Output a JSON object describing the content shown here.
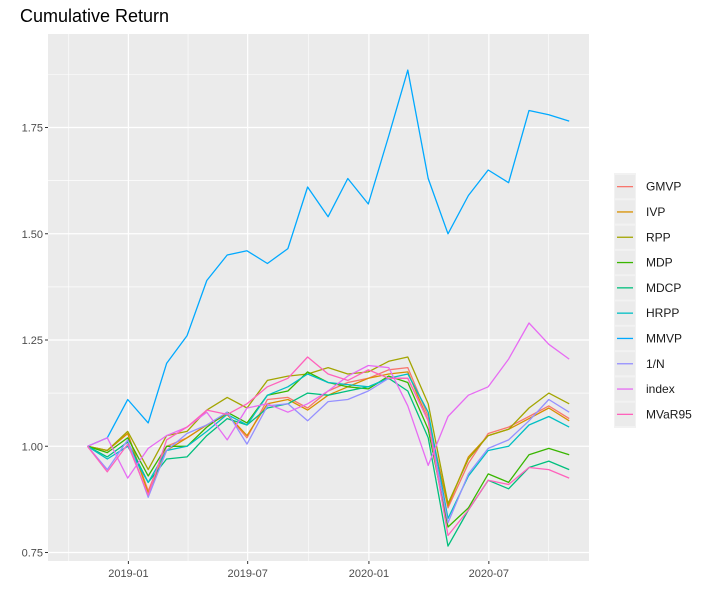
{
  "chart_data": {
    "type": "line",
    "title": "Cumulative Return",
    "xlabel": "",
    "ylabel": "",
    "grid": true,
    "legend_position": "right",
    "x": [
      "2018-10-31",
      "2018-11-30",
      "2018-12-31",
      "2019-01-31",
      "2019-02-28",
      "2019-03-31",
      "2019-04-30",
      "2019-05-31",
      "2019-06-30",
      "2019-07-31",
      "2019-08-31",
      "2019-09-30",
      "2019-10-31",
      "2019-11-30",
      "2019-12-31",
      "2020-01-31",
      "2020-02-29",
      "2020-03-31",
      "2020-04-30",
      "2020-05-31",
      "2020-06-30",
      "2020-07-31",
      "2020-08-31",
      "2020-09-30",
      "2020-10-31"
    ],
    "xlim": [
      "2018-09-01",
      "2020-11-30"
    ],
    "ylim": [
      0.73,
      1.97
    ],
    "x_ticks": [
      {
        "date": "2019-01-01",
        "label": "2019-01"
      },
      {
        "date": "2019-07-01",
        "label": "2019-07"
      },
      {
        "date": "2020-01-01",
        "label": "2020-01"
      },
      {
        "date": "2020-07-01",
        "label": "2020-07"
      }
    ],
    "y_ticks": [
      {
        "value": 0.75,
        "label": "0.75"
      },
      {
        "value": 1.0,
        "label": "1.00"
      },
      {
        "value": 1.25,
        "label": "1.25"
      },
      {
        "value": 1.5,
        "label": "1.50"
      },
      {
        "value": 1.75,
        "label": "1.75"
      }
    ],
    "series": [
      {
        "name": "GMVP",
        "color": "#F8766D",
        "values": [
          1.0,
          0.99,
          1.03,
          0.895,
          1.0,
          1.02,
          1.05,
          1.075,
          1.02,
          1.11,
          1.115,
          1.09,
          1.13,
          1.15,
          1.16,
          1.18,
          1.185,
          1.07,
          0.855,
          0.96,
          1.03,
          1.045,
          1.07,
          1.095,
          1.065
        ]
      },
      {
        "name": "IVP",
        "color": "#D89000",
        "values": [
          1.0,
          0.99,
          1.03,
          0.89,
          0.99,
          1.02,
          1.05,
          1.075,
          1.025,
          1.1,
          1.11,
          1.085,
          1.12,
          1.14,
          1.16,
          1.17,
          1.175,
          1.06,
          0.86,
          0.975,
          1.025,
          1.04,
          1.065,
          1.09,
          1.06
        ]
      },
      {
        "name": "RPP",
        "color": "#A3A500",
        "values": [
          1.0,
          0.99,
          1.035,
          0.945,
          1.025,
          1.035,
          1.085,
          1.115,
          1.09,
          1.155,
          1.165,
          1.17,
          1.185,
          1.17,
          1.175,
          1.2,
          1.21,
          1.1,
          0.865,
          0.97,
          1.025,
          1.04,
          1.09,
          1.125,
          1.1
        ]
      },
      {
        "name": "MDP",
        "color": "#39B600",
        "values": [
          1.0,
          0.985,
          1.02,
          0.93,
          1.0,
          1.0,
          1.045,
          1.08,
          1.055,
          1.12,
          1.13,
          1.175,
          1.15,
          1.14,
          1.135,
          1.165,
          1.15,
          1.04,
          0.81,
          0.855,
          0.935,
          0.915,
          0.98,
          0.995,
          0.98
        ]
      },
      {
        "name": "MDCP",
        "color": "#00BF7D",
        "values": [
          1.0,
          0.975,
          1.01,
          0.915,
          0.97,
          0.975,
          1.025,
          1.065,
          1.05,
          1.09,
          1.1,
          1.125,
          1.12,
          1.13,
          1.14,
          1.16,
          1.13,
          1.02,
          0.765,
          0.85,
          0.92,
          0.9,
          0.95,
          0.965,
          0.945
        ]
      },
      {
        "name": "HRPP",
        "color": "#00BFC4",
        "values": [
          1.0,
          0.97,
          1.0,
          0.915,
          0.99,
          1.0,
          1.035,
          1.075,
          1.05,
          1.12,
          1.14,
          1.17,
          1.15,
          1.145,
          1.14,
          1.16,
          1.17,
          1.08,
          0.83,
          0.93,
          0.99,
          1.0,
          1.05,
          1.07,
          1.045
        ]
      },
      {
        "name": "MMVP",
        "color": "#00A9FF",
        "values": [
          1.0,
          1.02,
          1.11,
          1.055,
          1.195,
          1.26,
          1.39,
          1.45,
          1.46,
          1.43,
          1.465,
          1.61,
          1.54,
          1.63,
          1.57,
          1.73,
          1.885,
          1.63,
          1.5,
          1.59,
          1.65,
          1.62,
          1.79,
          1.78,
          1.765
        ]
      },
      {
        "name": "1/N",
        "color": "#9590FF",
        "values": [
          1.0,
          0.945,
          1.015,
          0.88,
          0.99,
          1.03,
          1.05,
          1.08,
          1.005,
          1.095,
          1.1,
          1.06,
          1.105,
          1.11,
          1.13,
          1.16,
          1.16,
          1.06,
          0.82,
          0.935,
          0.995,
          1.015,
          1.06,
          1.11,
          1.08
        ]
      },
      {
        "name": "index",
        "color": "#E76BF3",
        "values": [
          1.0,
          1.02,
          0.925,
          0.995,
          1.025,
          1.045,
          1.08,
          1.015,
          1.09,
          1.1,
          1.08,
          1.1,
          1.13,
          1.165,
          1.19,
          1.185,
          1.095,
          0.955,
          1.07,
          1.12,
          1.14,
          1.205,
          1.29,
          1.24,
          1.205
        ]
      },
      {
        "name": "MVaR95",
        "color": "#FF62BC",
        "values": [
          1.0,
          0.94,
          1.005,
          0.885,
          1.015,
          1.045,
          1.085,
          1.075,
          1.1,
          1.14,
          1.16,
          1.21,
          1.17,
          1.155,
          1.18,
          1.16,
          1.16,
          1.06,
          0.79,
          0.85,
          0.92,
          0.91,
          0.95,
          0.945,
          0.925
        ]
      }
    ]
  }
}
